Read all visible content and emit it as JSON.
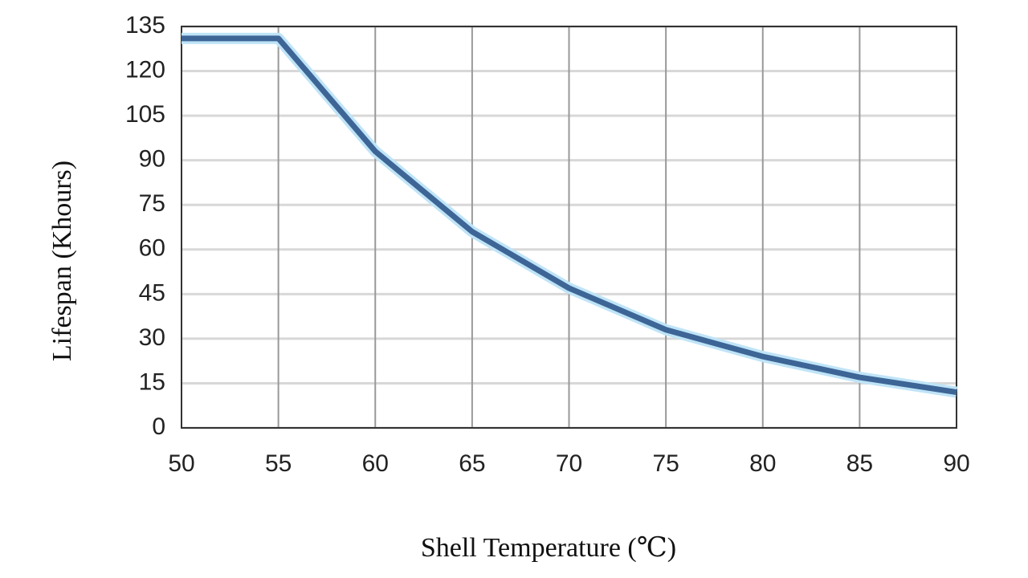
{
  "chart_data": {
    "type": "line",
    "x_label": "Shell Temperature (℃)",
    "y_label": "Lifespan (Khours)",
    "x": [
      50,
      55,
      60,
      65,
      70,
      75,
      80,
      85,
      90
    ],
    "values": [
      131,
      131,
      93,
      66,
      47,
      33,
      24,
      17,
      12
    ],
    "color": "#3d6596",
    "xlim": [
      50,
      90
    ],
    "xticks": [
      50,
      55,
      60,
      65,
      70,
      75,
      80,
      85,
      90
    ],
    "ylim": [
      0,
      135
    ],
    "yticks": [
      0,
      15,
      30,
      45,
      60,
      75,
      90,
      105,
      120,
      135
    ],
    "grid": true
  }
}
